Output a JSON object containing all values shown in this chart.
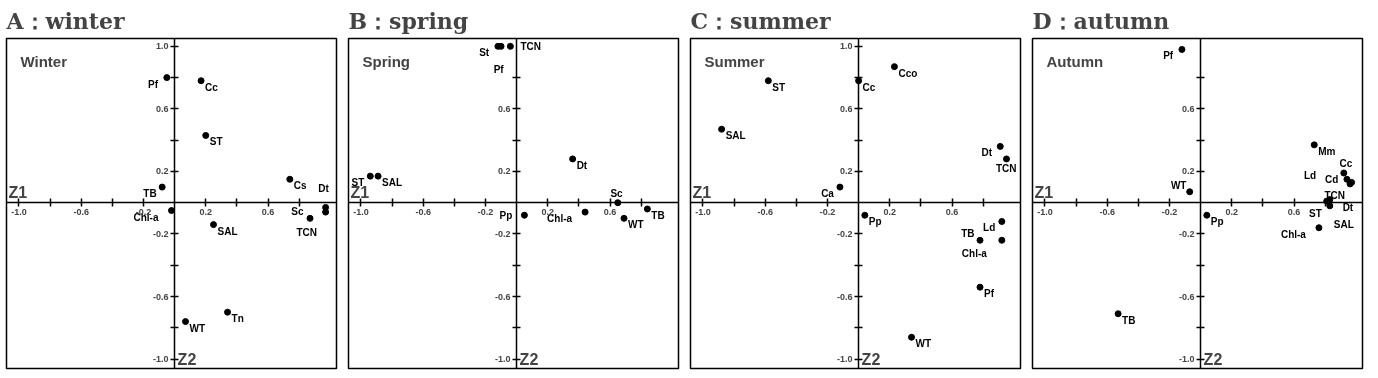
{
  "chart_data": [
    {
      "type": "scatter",
      "title": "A：winter",
      "subtitle": "Winter",
      "xlabel": "Z1",
      "ylabel": "Z2",
      "xlim": [
        -1.08,
        1.04
      ],
      "ylim": [
        -1.06,
        1.05
      ],
      "marker": "circle",
      "grid": false,
      "xticks": [
        {
          "value": -1,
          "label": "-1.0"
        },
        {
          "value": -0.8,
          "label": null
        },
        -0.6,
        {
          "value": -0.4,
          "label": null
        },
        -0.2,
        0.2,
        {
          "value": 0.4,
          "label": null
        },
        0.6,
        {
          "value": 0.8,
          "label": null
        }
      ],
      "yticks": [
        {
          "value": 1,
          "label": "1.0"
        },
        {
          "value": 0.8,
          "label": null
        },
        0.6,
        {
          "value": 0.4,
          "label": null
        },
        0.2,
        -0.2,
        {
          "value": -0.4,
          "label": null
        },
        -0.6,
        {
          "value": -0.8,
          "label": null
        },
        {
          "value": -1,
          "label": "-1.0"
        }
      ],
      "series": [
        {
          "color": "#000000",
          "x": [
            -0.05,
            0.17,
            0.2,
            -0.08,
            -0.02,
            0.74,
            0.97,
            0.97,
            0.87,
            0.25,
            0.34,
            0.07
          ],
          "values": [
            0.8,
            0.78,
            0.43,
            0.1,
            -0.05,
            0.15,
            -0.03,
            -0.06,
            -0.1,
            -0.14,
            -0.7,
            -0.76
          ]
        }
      ],
      "annotations": [
        {
          "text": "Pf",
          "x": -0.05,
          "y": 0.8
        },
        {
          "text": "Cc",
          "x": 0.17,
          "y": 0.78
        },
        {
          "text": "ST",
          "x": 0.2,
          "y": 0.43
        },
        {
          "text": "TB",
          "x": -0.08,
          "y": 0.1
        },
        {
          "text": "Chl-a",
          "x": -0.02,
          "y": -0.05
        },
        {
          "text": "Cs",
          "x": 0.74,
          "y": 0.15
        },
        {
          "text": "TCN",
          "x": 0.97,
          "y": -0.03
        },
        {
          "text": "Dt",
          "x": 0.97,
          "y": -0.06
        },
        {
          "text": "Sc",
          "x": 0.87,
          "y": -0.1
        },
        {
          "text": "SAL",
          "x": 0.25,
          "y": -0.14
        },
        {
          "text": "Tn",
          "x": 0.34,
          "y": -0.7
        },
        {
          "text": "WT",
          "x": 0.07,
          "y": -0.76
        }
      ]
    },
    {
      "type": "scatter",
      "title": "B：spring",
      "subtitle": "Spring",
      "xlabel": "Z1",
      "ylabel": "Z2",
      "xlim": [
        -1.08,
        1.04
      ],
      "ylim": [
        -1.06,
        1.05
      ],
      "marker": "circle",
      "grid": false,
      "xticks": [
        {
          "value": -1,
          "label": "-1.0"
        },
        {
          "value": -0.8,
          "label": null
        },
        -0.6,
        {
          "value": -0.4,
          "label": null
        },
        -0.2,
        0.2,
        {
          "value": 0.4,
          "label": null
        },
        0.6,
        {
          "value": 0.8,
          "label": null
        }
      ],
      "yticks": [
        {
          "value": 0.8,
          "label": null
        },
        0.6,
        {
          "value": 0.4,
          "label": null
        },
        0.2,
        -0.2,
        {
          "value": -0.4,
          "label": null
        },
        -0.6,
        {
          "value": -0.8,
          "label": null
        },
        {
          "value": -1,
          "label": "-1.0"
        }
      ],
      "series": [
        {
          "color": "#000000",
          "x": [
            -0.12,
            -0.1,
            -0.04,
            -0.94,
            -0.89,
            0.36,
            0.65,
            0.84,
            0.69,
            0.44,
            0.05
          ],
          "values": [
            1.0,
            1.0,
            1.0,
            0.17,
            0.17,
            0.28,
            0.0,
            -0.04,
            -0.1,
            -0.06,
            -0.08
          ]
        }
      ],
      "annotations": [
        {
          "text": "St",
          "x": -0.12,
          "y": 1.0
        },
        {
          "text": "Pf",
          "x": -0.1,
          "y": 1.0
        },
        {
          "text": "TCN",
          "x": -0.04,
          "y": 1.0
        },
        {
          "text": "ST",
          "x": -0.94,
          "y": 0.17
        },
        {
          "text": "SAL",
          "x": -0.89,
          "y": 0.17
        },
        {
          "text": "Dt",
          "x": 0.36,
          "y": 0.28
        },
        {
          "text": "Sc",
          "x": 0.65,
          "y": 0.0
        },
        {
          "text": "TB",
          "x": 0.84,
          "y": -0.04
        },
        {
          "text": "WT",
          "x": 0.69,
          "y": -0.1
        },
        {
          "text": "Chl-a",
          "x": 0.44,
          "y": -0.06
        },
        {
          "text": "Pp",
          "x": 0.05,
          "y": -0.08
        }
      ]
    },
    {
      "type": "scatter",
      "title": "C：summer",
      "subtitle": "Summer",
      "xlabel": "Z1",
      "ylabel": "Z2",
      "xlim": [
        -1.08,
        1.04
      ],
      "ylim": [
        -1.06,
        1.05
      ],
      "marker": "circle",
      "grid": false,
      "xticks": [
        {
          "value": -1,
          "label": "-1.0"
        },
        {
          "value": -0.8,
          "label": null
        },
        -0.6,
        {
          "value": -0.4,
          "label": null
        },
        -0.2,
        0.2,
        {
          "value": 0.4,
          "label": null
        },
        0.6,
        {
          "value": 0.8,
          "label": null
        }
      ],
      "yticks": [
        {
          "value": 1,
          "label": "1.0"
        },
        {
          "value": 0.8,
          "label": null
        },
        0.6,
        {
          "value": 0.4,
          "label": null
        },
        0.2,
        -0.2,
        {
          "value": -0.4,
          "label": null
        },
        -0.6,
        {
          "value": -0.8,
          "label": null
        },
        {
          "value": -1,
          "label": "-1.0"
        }
      ],
      "series": [
        {
          "color": "#000000",
          "x": [
            -0.58,
            -0.88,
            -0.12,
            0.0,
            0.23,
            0.91,
            0.95,
            0.92,
            0.92,
            0.78,
            0.78,
            0.34,
            0.04
          ],
          "values": [
            0.78,
            0.47,
            0.1,
            0.78,
            0.87,
            0.36,
            0.28,
            -0.12,
            -0.24,
            -0.24,
            -0.54,
            -0.86,
            -0.08
          ]
        }
      ],
      "annotations": [
        {
          "text": "ST",
          "x": -0.58,
          "y": 0.78
        },
        {
          "text": "SAL",
          "x": -0.88,
          "y": 0.47
        },
        {
          "text": "Ca",
          "x": -0.12,
          "y": 0.1
        },
        {
          "text": "Cc",
          "x": 0.0,
          "y": 0.78
        },
        {
          "text": "Cco",
          "x": 0.23,
          "y": 0.87
        },
        {
          "text": "Dt",
          "x": 0.91,
          "y": 0.36
        },
        {
          "text": "TCN",
          "x": 0.95,
          "y": 0.28
        },
        {
          "text": "Ld",
          "x": 0.92,
          "y": -0.12
        },
        {
          "text": "Chl-a",
          "x": 0.92,
          "y": -0.24
        },
        {
          "text": "TB",
          "x": 0.78,
          "y": -0.24
        },
        {
          "text": "Pf",
          "x": 0.78,
          "y": -0.54
        },
        {
          "text": "WT",
          "x": 0.34,
          "y": -0.86
        },
        {
          "text": "Pp",
          "x": 0.04,
          "y": -0.08
        }
      ]
    },
    {
      "type": "scatter",
      "title": "D：autumn",
      "subtitle": "Autumn",
      "xlabel": "Z1",
      "ylabel": "Z2",
      "xlim": [
        -1.08,
        1.04
      ],
      "ylim": [
        -1.06,
        1.05
      ],
      "marker": "circle",
      "grid": false,
      "xticks": [
        {
          "value": -1,
          "label": "-1.0"
        },
        {
          "value": -0.8,
          "label": null
        },
        -0.6,
        {
          "value": -0.4,
          "label": null
        },
        -0.2,
        0.2,
        {
          "value": 0.4,
          "label": null
        },
        0.6,
        {
          "value": 0.8,
          "label": null
        }
      ],
      "yticks": [
        {
          "value": 0.8,
          "label": null
        },
        0.6,
        {
          "value": 0.4,
          "label": null
        },
        0.2,
        -0.2,
        {
          "value": -0.4,
          "label": null
        },
        -0.6,
        {
          "value": -0.8,
          "label": null
        },
        {
          "value": -1,
          "label": "-1.0"
        }
      ],
      "series": [
        {
          "color": "#000000",
          "x": [
            -0.12,
            0.73,
            0.92,
            0.94,
            0.97,
            0.96,
            0.83,
            0.81,
            0.83,
            0.76,
            -0.07,
            0.04,
            -0.53
          ],
          "values": [
            0.98,
            0.37,
            0.19,
            0.15,
            0.13,
            0.12,
            0.02,
            0.01,
            -0.02,
            -0.16,
            0.07,
            -0.08,
            -0.71
          ]
        }
      ],
      "annotations": [
        {
          "text": "Pf",
          "x": -0.12,
          "y": 0.98
        },
        {
          "text": "Mm",
          "x": 0.73,
          "y": 0.37
        },
        {
          "text": "Cd",
          "x": 0.92,
          "y": 0.19
        },
        {
          "text": "Cc",
          "x": 0.94,
          "y": 0.15
        },
        {
          "text": "TCN",
          "x": 0.97,
          "y": 0.13
        },
        {
          "text": "Dt",
          "x": 0.96,
          "y": 0.12
        },
        {
          "text": "ST",
          "x": 0.83,
          "y": 0.02
        },
        {
          "text": "Ld",
          "x": 0.81,
          "y": 0.01
        },
        {
          "text": "SAL",
          "x": 0.83,
          "y": -0.02
        },
        {
          "text": "Chl-a",
          "x": 0.76,
          "y": -0.16
        },
        {
          "text": "WT",
          "x": -0.07,
          "y": 0.07
        },
        {
          "text": "Pp",
          "x": 0.04,
          "y": -0.08
        },
        {
          "text": "TB",
          "x": -0.53,
          "y": -0.71
        }
      ]
    }
  ]
}
